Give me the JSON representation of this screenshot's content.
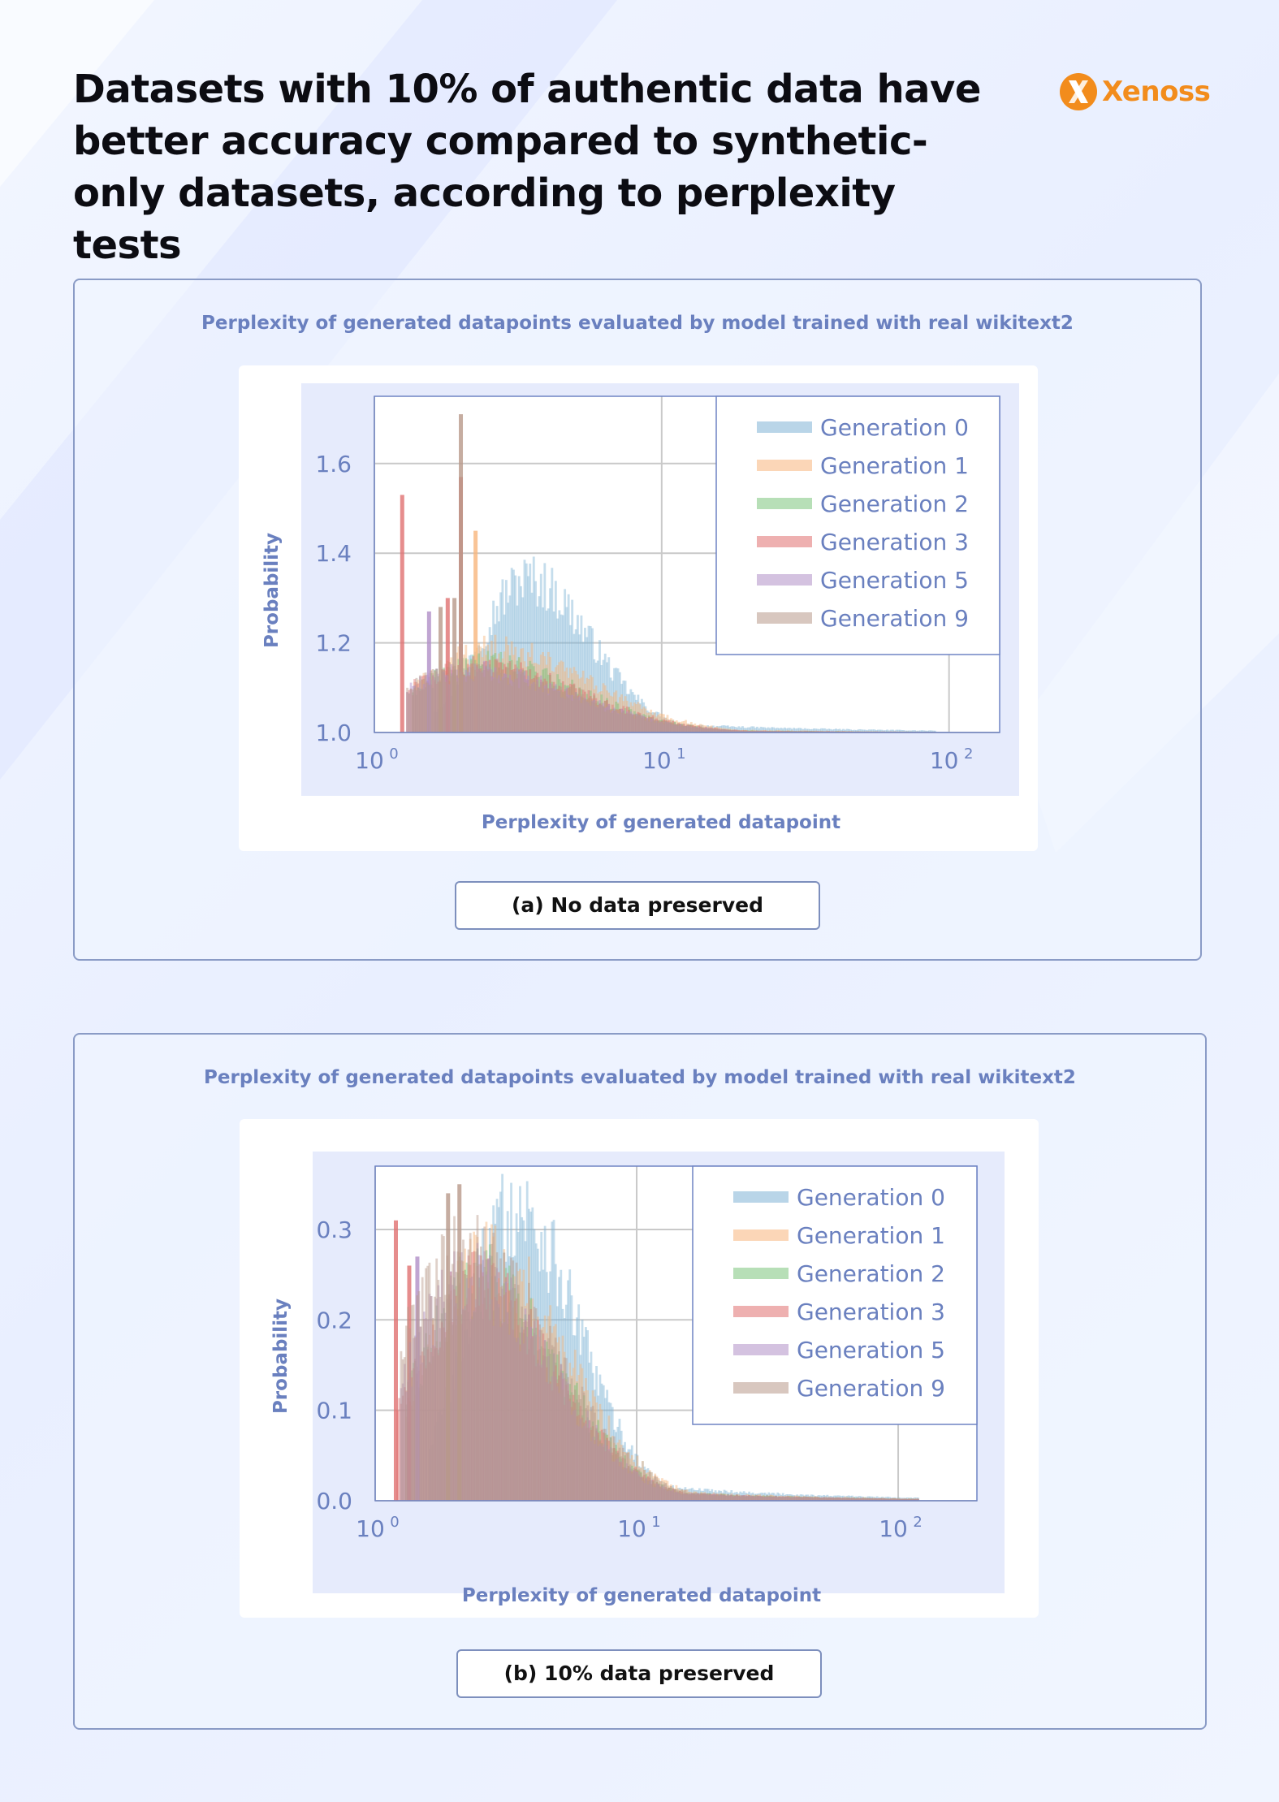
{
  "header": {
    "title": "Datasets with 10% of authentic data have better accuracy compared to synthetic-only datasets, according to perplexity tests",
    "logo_text": "Xenoss",
    "logo_letter": "X"
  },
  "colors": {
    "accent": "#f28c1c",
    "label": "#6a80bf",
    "plot_bg": "#e6ebfc",
    "gen0": "#7fb3d5",
    "gen1": "#f7b57c",
    "gen2": "#7cc47c",
    "gen3": "#e07070",
    "gen5": "#b08fc7",
    "gen9": "#b8998a"
  },
  "panels": [
    {
      "title": "Perplexity of generated datapoints evaluated by model trained with real wikitext2",
      "caption": "(a) No data preserved"
    },
    {
      "title": "Perplexity of generated datapoints evaluated by model trained with real wikitext2",
      "caption": "(b) 10% data preserved"
    }
  ],
  "chart_data": [
    {
      "type": "histogram",
      "title": "Perplexity of generated datapoints evaluated by model trained with real wikitext2",
      "xlabel": "Perplexity of generated datapoint",
      "ylabel": "Probability",
      "x_scale": "log",
      "xlim": [
        1,
        150
      ],
      "ylim": [
        1.0,
        1.75
      ],
      "x_ticks": [
        1,
        10,
        100
      ],
      "x_tick_labels": [
        [
          "10",
          "0"
        ],
        [
          "10",
          "1"
        ],
        [
          "10",
          "2"
        ]
      ],
      "y_ticks": [
        1.0,
        1.2,
        1.4,
        1.6
      ],
      "y_tick_labels": [
        "1.0",
        "1.2",
        "1.4",
        "1.6"
      ],
      "grid": true,
      "legend_position": "top-right",
      "caption": "(a) No data preserved",
      "series": [
        {
          "name": "Generation 0",
          "color_key": "gen0",
          "peak_x": 3.4,
          "peak_y": 1.35,
          "spread": 0.22,
          "start_x": 1.6,
          "spikes": []
        },
        {
          "name": "Generation 1",
          "color_key": "gen1",
          "peak_x": 2.6,
          "peak_y": 1.19,
          "spread": 0.33,
          "start_x": 1.35,
          "spikes": [
            [
              2.25,
              1.45
            ]
          ]
        },
        {
          "name": "Generation 2",
          "color_key": "gen2",
          "peak_x": 2.4,
          "peak_y": 1.16,
          "spread": 0.33,
          "start_x": 1.35,
          "spikes": []
        },
        {
          "name": "Generation 3",
          "color_key": "gen3",
          "peak_x": 2.3,
          "peak_y": 1.15,
          "spread": 0.35,
          "start_x": 1.3,
          "spikes": [
            [
              1.25,
              1.53
            ],
            [
              2.0,
              1.57
            ],
            [
              1.8,
              1.3
            ]
          ]
        },
        {
          "name": "Generation 5",
          "color_key": "gen5",
          "peak_x": 2.2,
          "peak_y": 1.14,
          "spread": 0.35,
          "start_x": 1.3,
          "spikes": [
            [
              1.55,
              1.27
            ]
          ]
        },
        {
          "name": "Generation 9",
          "color_key": "gen9",
          "peak_x": 2.1,
          "peak_y": 1.14,
          "spread": 0.36,
          "start_x": 1.3,
          "spikes": [
            [
              2.0,
              1.71
            ],
            [
              1.9,
              1.3
            ],
            [
              1.7,
              1.28
            ]
          ]
        }
      ]
    },
    {
      "type": "histogram",
      "title": "Perplexity of generated datapoints evaluated by model trained with real wikitext2",
      "xlabel": "Perplexity of generated datapoint",
      "ylabel": "Probability",
      "x_scale": "log",
      "xlim": [
        1,
        200
      ],
      "ylim": [
        0.0,
        0.37
      ],
      "x_ticks": [
        1,
        10,
        100
      ],
      "x_tick_labels": [
        [
          "10",
          "0"
        ],
        [
          "10",
          "1"
        ],
        [
          "10",
          "2"
        ]
      ],
      "y_ticks": [
        0.0,
        0.1,
        0.2,
        0.3
      ],
      "y_tick_labels": [
        "0.0",
        "0.1",
        "0.2",
        "0.3"
      ],
      "grid": true,
      "legend_position": "top-right",
      "caption": "(b) 10% data preserved",
      "series": [
        {
          "name": "Generation 0",
          "color_key": "gen0",
          "peak_x": 3.4,
          "peak_y": 0.33,
          "spread": 0.24,
          "start_x": 1.6,
          "spikes": []
        },
        {
          "name": "Generation 1",
          "color_key": "gen1",
          "peak_x": 2.7,
          "peak_y": 0.27,
          "spread": 0.3,
          "start_x": 1.3,
          "spikes": []
        },
        {
          "name": "Generation 2",
          "color_key": "gen2",
          "peak_x": 2.5,
          "peak_y": 0.25,
          "spread": 0.3,
          "start_x": 1.3,
          "spikes": []
        },
        {
          "name": "Generation 3",
          "color_key": "gen3",
          "peak_x": 2.4,
          "peak_y": 0.24,
          "spread": 0.31,
          "start_x": 1.2,
          "spikes": [
            [
              1.2,
              0.31
            ],
            [
              1.35,
              0.26
            ]
          ]
        },
        {
          "name": "Generation 5",
          "color_key": "gen5",
          "peak_x": 2.3,
          "peak_y": 0.25,
          "spread": 0.31,
          "start_x": 1.25,
          "spikes": [
            [
              1.45,
              0.27
            ]
          ]
        },
        {
          "name": "Generation 9",
          "color_key": "gen9",
          "peak_x": 2.2,
          "peak_y": 0.28,
          "spread": 0.33,
          "start_x": 1.25,
          "spikes": [
            [
              2.1,
              0.35
            ],
            [
              1.9,
              0.34
            ]
          ]
        }
      ]
    }
  ]
}
